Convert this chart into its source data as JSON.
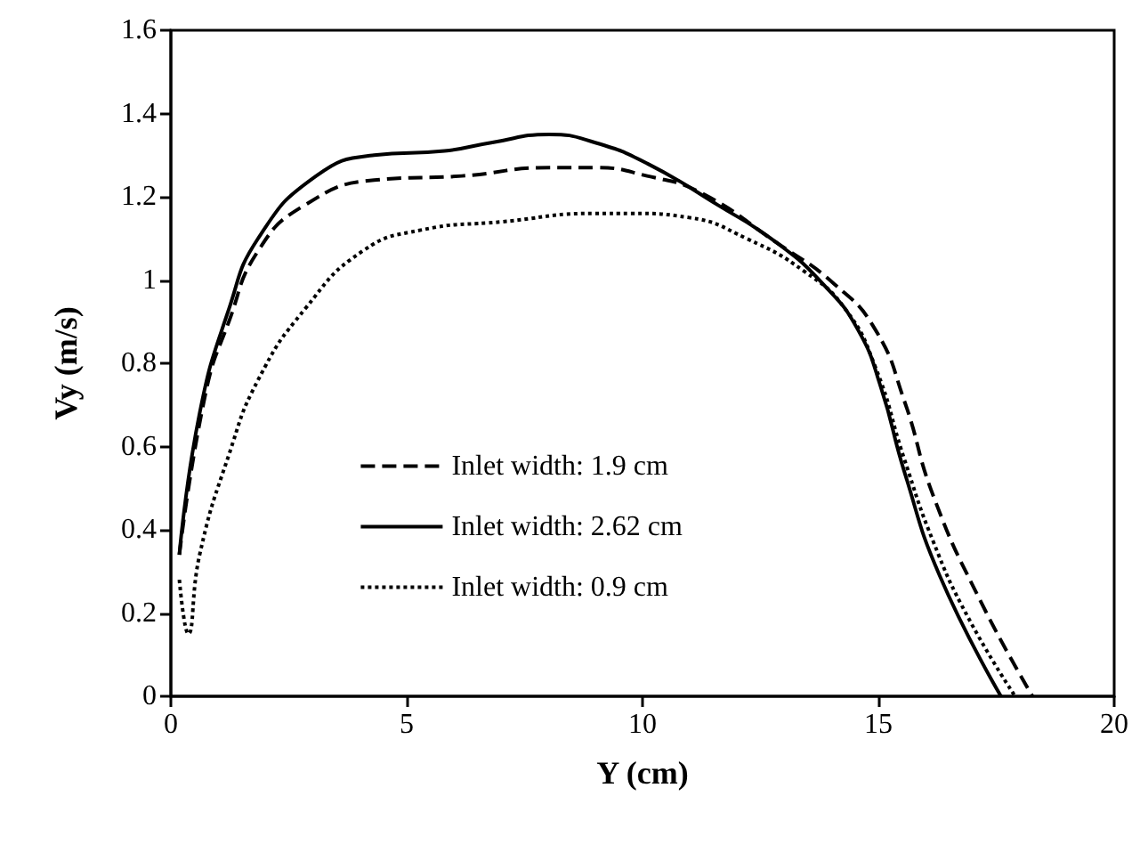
{
  "chart_data": {
    "type": "line",
    "xlabel": "Y (cm)",
    "ylabel": "Vy (m/s)",
    "xlim": [
      0,
      20
    ],
    "xticks": [
      0,
      5,
      10,
      15,
      20
    ],
    "ylim": [
      0,
      1.6
    ],
    "yticks": [
      0,
      0.2,
      0.4,
      0.6,
      0.8,
      1,
      1.2,
      1.4,
      1.6
    ],
    "grid": false,
    "legend": "center",
    "marker": "none",
    "series": [
      {
        "name": "Inlet width: 1.9 cm",
        "color": "#000000",
        "line_style": "dashed",
        "x": [
          0.18,
          0.74,
          1.23,
          1.85,
          2.84,
          4.31,
          6.17,
          8.02,
          9.0,
          10.1,
          11.23,
          12.84,
          14.07,
          14.94,
          15.55,
          16.17,
          17.16,
          18.27
        ],
        "values": [
          0.34,
          0.73,
          0.9,
          1.07,
          1.18,
          1.24,
          1.25,
          1.27,
          1.27,
          1.25,
          1.21,
          1.09,
          0.99,
          0.88,
          0.71,
          0.48,
          0.23,
          0
        ]
      },
      {
        "name": "Inlet width: 2.62 cm",
        "color": "#000000",
        "line_style": "solid",
        "x": [
          0.18,
          0.61,
          1.23,
          1.85,
          3.08,
          4.31,
          5.8,
          6.79,
          8.02,
          9.0,
          10.1,
          11.6,
          12.84,
          13.83,
          14.57,
          15.06,
          15.55,
          16.3,
          17.6
        ],
        "values": [
          0.34,
          0.68,
          0.93,
          1.1,
          1.25,
          1.3,
          1.31,
          1.33,
          1.35,
          1.33,
          1.28,
          1.18,
          1.09,
          0.99,
          0.88,
          0.74,
          0.54,
          0.29,
          0
        ]
      },
      {
        "name": "Inlet width: 0.9 cm",
        "color": "#000000",
        "line_style": "dotted",
        "x": [
          0.18,
          0.37,
          0.61,
          1.23,
          1.85,
          2.84,
          4.07,
          5.3,
          7.03,
          8.99,
          9.75,
          10.99,
          12.2,
          13.44,
          14.3,
          14.94,
          15.55,
          16.17,
          16.9,
          17.9
        ],
        "values": [
          0.28,
          0.15,
          0.34,
          0.58,
          0.76,
          0.93,
          1.07,
          1.12,
          1.14,
          1.16,
          1.16,
          1.15,
          1.1,
          1.02,
          0.93,
          0.79,
          0.57,
          0.37,
          0.19,
          0
        ]
      }
    ]
  }
}
